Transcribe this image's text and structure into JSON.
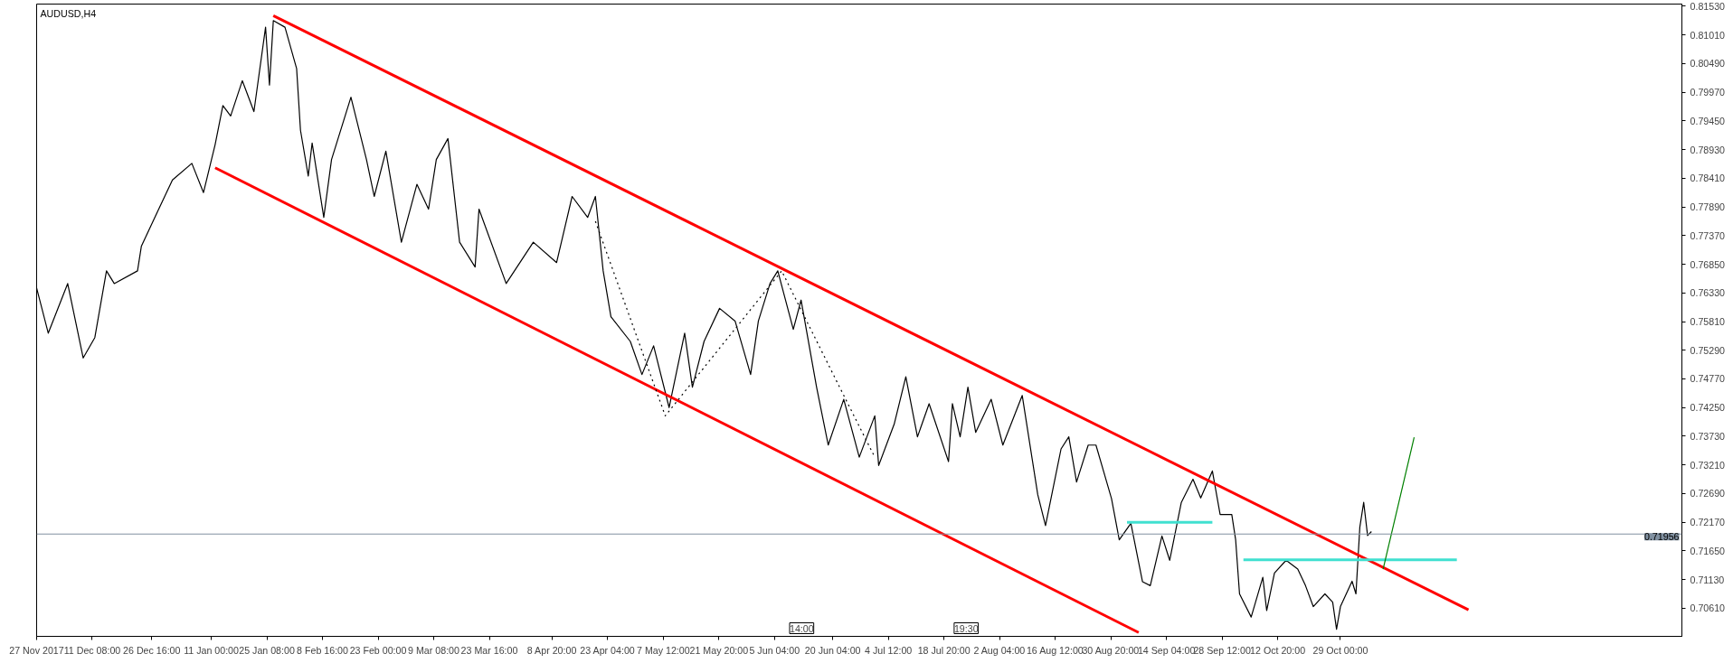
{
  "chart_data": {
    "type": "line",
    "title": "AUDUSD,H4",
    "xlim": [
      "2017-11-27",
      "2019-01-25"
    ],
    "ylim": [
      0.701,
      0.8157
    ],
    "xticks": [
      {
        "value": "2017-11-27",
        "label": "27 Nov 2017"
      },
      {
        "value": "2017-12-11T08:00",
        "label": "11 Dec 08:00"
      },
      {
        "value": "2017-12-26T16:00",
        "label": "26 Dec 16:00"
      },
      {
        "value": "2018-01-11T00:00",
        "label": "11 Jan 00:00"
      },
      {
        "value": "2018-01-25T08:00",
        "label": "25 Jan 08:00"
      },
      {
        "value": "2018-02-08T16:00",
        "label": "8 Feb 16:00"
      },
      {
        "value": "2018-02-23T00:00",
        "label": "23 Feb 00:00"
      },
      {
        "value": "2018-03-09T08:00",
        "label": "9 Mar 08:00"
      },
      {
        "value": "2018-03-23T16:00",
        "label": "23 Mar 16:00"
      },
      {
        "value": "2018-04-08T20:00",
        "label": "8 Apr 20:00"
      },
      {
        "value": "2018-04-23T04:00",
        "label": "23 Apr 04:00"
      },
      {
        "value": "2018-05-07T12:00",
        "label": "7 May 12:00"
      },
      {
        "value": "2018-05-21T20:00",
        "label": "21 May 20:00"
      },
      {
        "value": "2018-06-05T04:00",
        "label": "5 Jun 04:00"
      },
      {
        "value": "2018-06-20T04:00",
        "label": "20 Jun 04:00"
      },
      {
        "value": "2018-07-04T12:00",
        "label": "4 Jul 12:00"
      },
      {
        "value": "2018-07-18T20:00",
        "label": "18 Jul 20:00"
      },
      {
        "value": "2018-08-02T04:00",
        "label": "2 Aug 04:00"
      },
      {
        "value": "2018-08-16T12:00",
        "label": "16 Aug 12:00"
      },
      {
        "value": "2018-08-30T20:00",
        "label": "30 Aug 20:00"
      },
      {
        "value": "2018-09-14T04:00",
        "label": "14 Sep 04:00"
      },
      {
        "value": "2018-09-28T12:00",
        "label": "28 Sep 12:00"
      },
      {
        "value": "2018-10-12T20:00",
        "label": "12 Oct 20:00"
      },
      {
        "value": "2018-10-29T00:00",
        "label": "29 Oct 00:00"
      }
    ],
    "yticks": [
      {
        "value": 0.8153,
        "label": "0.81530"
      },
      {
        "value": 0.8101,
        "label": "0.81010"
      },
      {
        "value": 0.8049,
        "label": "0.80490"
      },
      {
        "value": 0.7997,
        "label": "0.79970"
      },
      {
        "value": 0.7945,
        "label": "0.79450"
      },
      {
        "value": 0.7893,
        "label": "0.78930"
      },
      {
        "value": 0.7841,
        "label": "0.78410"
      },
      {
        "value": 0.7789,
        "label": "0.77890"
      },
      {
        "value": 0.7737,
        "label": "0.77370"
      },
      {
        "value": 0.7685,
        "label": "0.76850"
      },
      {
        "value": 0.7633,
        "label": "0.76330"
      },
      {
        "value": 0.7581,
        "label": "0.75810"
      },
      {
        "value": 0.7529,
        "label": "0.75290"
      },
      {
        "value": 0.7477,
        "label": "0.74770"
      },
      {
        "value": 0.7425,
        "label": "0.74250"
      },
      {
        "value": 0.7373,
        "label": "0.73730"
      },
      {
        "value": 0.7321,
        "label": "0.73210"
      },
      {
        "value": 0.7269,
        "label": "0.72690"
      },
      {
        "value": 0.7217,
        "label": "0.72170"
      },
      {
        "value": 0.7165,
        "label": "0.71650"
      },
      {
        "value": 0.7113,
        "label": "0.71130"
      },
      {
        "value": 0.7061,
        "label": "0.70610"
      }
    ],
    "grid": false,
    "series": [
      {
        "color": "#000000",
        "x": [
          "2017-11-27",
          "2017-11-30",
          "2017-12-05",
          "2017-12-09",
          "2017-12-12",
          "2017-12-15",
          "2017-12-17",
          "2017-12-23",
          "2017-12-24",
          "2017-12-28",
          "2018-01-01",
          "2018-01-06",
          "2018-01-09",
          "2018-01-12",
          "2018-01-14",
          "2018-01-16",
          "2018-01-19",
          "2018-01-22",
          "2018-01-25",
          "2018-01-26",
          "2018-01-27",
          "2018-01-30",
          "2018-02-02",
          "2018-02-03",
          "2018-02-05",
          "2018-02-06",
          "2018-02-09",
          "2018-02-11",
          "2018-02-16",
          "2018-02-20",
          "2018-02-22",
          "2018-02-25",
          "2018-03-01",
          "2018-03-05",
          "2018-03-08",
          "2018-03-10",
          "2018-03-13",
          "2018-03-16",
          "2018-03-20",
          "2018-03-21",
          "2018-03-28",
          "2018-04-04",
          "2018-04-10",
          "2018-04-14",
          "2018-04-18",
          "2018-04-20",
          "2018-04-22",
          "2018-04-24",
          "2018-04-29",
          "2018-05-02",
          "2018-05-05",
          "2018-05-09",
          "2018-05-13",
          "2018-05-15",
          "2018-05-18",
          "2018-05-22",
          "2018-05-26",
          "2018-05-30",
          "2018-06-01",
          "2018-06-04",
          "2018-06-06",
          "2018-06-10",
          "2018-06-12",
          "2018-06-16",
          "2018-06-19",
          "2018-06-23",
          "2018-06-27",
          "2018-07-01",
          "2018-07-02",
          "2018-07-06",
          "2018-07-09",
          "2018-07-12",
          "2018-07-15",
          "2018-07-20",
          "2018-07-21",
          "2018-07-23",
          "2018-07-25",
          "2018-07-27",
          "2018-07-31",
          "2018-08-03",
          "2018-08-08",
          "2018-08-12",
          "2018-08-14",
          "2018-08-18",
          "2018-08-20",
          "2018-08-22",
          "2018-08-25",
          "2018-08-27",
          "2018-08-31",
          "2018-09-02",
          "2018-09-05",
          "2018-09-08",
          "2018-09-10",
          "2018-09-13",
          "2018-09-15",
          "2018-09-18",
          "2018-09-21",
          "2018-09-23",
          "2018-09-26",
          "2018-09-28",
          "2018-10-01",
          "2018-10-02",
          "2018-10-03",
          "2018-10-06",
          "2018-10-09",
          "2018-10-10",
          "2018-10-12",
          "2018-10-15",
          "2018-10-18",
          "2018-10-20",
          "2018-10-22",
          "2018-10-25",
          "2018-10-27",
          "2018-10-28",
          "2018-10-29",
          "2018-11-01",
          "2018-11-02",
          "2018-11-03",
          "2018-11-04",
          "2018-11-05",
          "2018-11-06"
        ],
        "values": [
          0.7642,
          0.756,
          0.765,
          0.7515,
          0.7552,
          0.7673,
          0.765,
          0.7673,
          0.7718,
          0.7778,
          0.7838,
          0.7868,
          0.7815,
          0.7902,
          0.7973,
          0.7954,
          0.8018,
          0.7962,
          0.8115,
          0.801,
          0.8127,
          0.8115,
          0.804,
          0.7928,
          0.7845,
          0.7905,
          0.777,
          0.7875,
          0.7988,
          0.7875,
          0.7808,
          0.789,
          0.7725,
          0.783,
          0.7785,
          0.7875,
          0.7913,
          0.7725,
          0.768,
          0.7785,
          0.765,
          0.7725,
          0.7688,
          0.7808,
          0.777,
          0.7808,
          0.7673,
          0.759,
          0.7545,
          0.7485,
          0.7537,
          0.7425,
          0.756,
          0.7462,
          0.7545,
          0.7605,
          0.7582,
          0.7485,
          0.7582,
          0.765,
          0.7673,
          0.7567,
          0.762,
          0.7462,
          0.7357,
          0.744,
          0.7335,
          0.741,
          0.732,
          0.7395,
          0.7481,
          0.7372,
          0.7432,
          0.7327,
          0.7432,
          0.7372,
          0.7462,
          0.738,
          0.744,
          0.7357,
          0.7447,
          0.7267,
          0.7211,
          0.735,
          0.7372,
          0.729,
          0.7357,
          0.7357,
          0.726,
          0.7185,
          0.7215,
          0.7109,
          0.7102,
          0.7192,
          0.7148,
          0.7253,
          0.7295,
          0.7261,
          0.731,
          0.7231,
          0.7231,
          0.7185,
          0.7087,
          0.7045,
          0.7117,
          0.7057,
          0.7125,
          0.7148,
          0.7132,
          0.7102,
          0.7064,
          0.7087,
          0.7072,
          0.7023,
          0.7064,
          0.711,
          0.7087,
          0.7208,
          0.7253,
          0.7193,
          0.72
        ]
      },
      {
        "color": "#ff0000",
        "x": [
          "2018-01-27",
          "2018-12-01"
        ],
        "values": [
          0.8136,
          0.7058
        ]
      },
      {
        "color": "#ff0000",
        "x": [
          "2018-01-12",
          "2018-09-07"
        ],
        "values": [
          0.786,
          0.7017
        ]
      },
      {
        "color": "#40e0d0",
        "x": [
          "2018-09-04",
          "2018-09-26"
        ],
        "values": [
          0.7217,
          0.7217
        ]
      },
      {
        "color": "#40e0d0",
        "x": [
          "2018-10-04",
          "2018-11-28"
        ],
        "values": [
          0.7149,
          0.7149
        ]
      },
      {
        "color": "#008000",
        "x": [
          "2018-11-09",
          "2018-11-17"
        ],
        "values": [
          0.7132,
          0.7371
        ]
      },
      {
        "color": "#000000",
        "line_style": "dotted",
        "x": [
          "2018-04-20",
          "2018-05-08",
          "2018-06-07",
          "2018-06-23",
          "2018-07-01"
        ],
        "values": [
          0.7763,
          0.741,
          0.7673,
          0.7447,
          0.7335
        ]
      }
    ],
    "ref_lines": [
      {
        "axis": "y",
        "value": 0.71956,
        "label": "0.71956",
        "color": "#8090a0"
      }
    ],
    "annotations": [
      "14:00",
      "19:30"
    ]
  }
}
